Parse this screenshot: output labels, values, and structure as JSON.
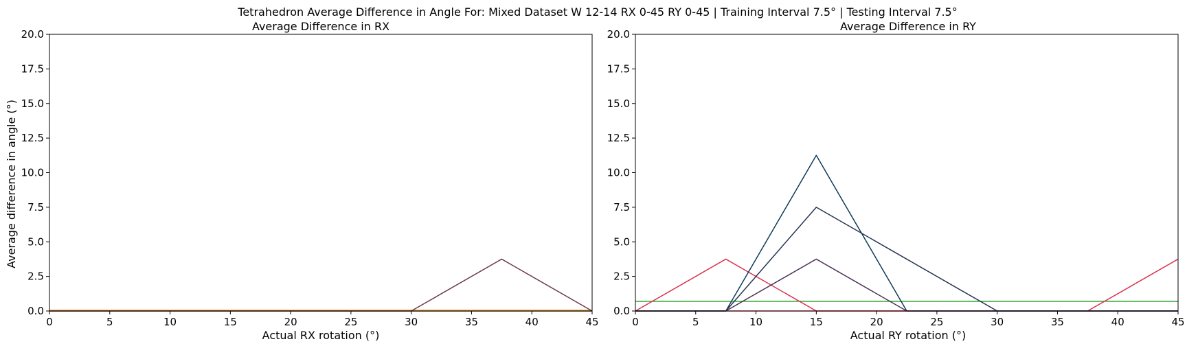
{
  "figure": {
    "title": "Tetrahedron Average Difference in Angle For: Mixed Dataset W 12-14 RX 0-45 RY 0-45 | Training Interval 7.5° | Testing Interval 7.5°"
  },
  "chart_data": [
    {
      "type": "line",
      "title": "Average Difference in RX",
      "xlabel": "Actual RX rotation (°)",
      "ylabel": "Average difference in angle (°)",
      "xlim": [
        0,
        45
      ],
      "ylim": [
        0,
        20
      ],
      "xticks": [
        0,
        5,
        10,
        15,
        20,
        25,
        30,
        35,
        40,
        45
      ],
      "yticks": [
        0.0,
        2.5,
        5.0,
        7.5,
        10.0,
        12.5,
        15.0,
        17.5,
        20.0
      ],
      "grid": false,
      "series": [
        {
          "color": "#1f77b4",
          "x": [
            0,
            7.5,
            15,
            22.5,
            30,
            37.5,
            45
          ],
          "y": [
            0,
            0,
            0,
            0,
            0,
            0,
            0
          ]
        },
        {
          "color": "#2ca02c",
          "x": [
            0,
            7.5,
            15,
            22.5,
            30,
            37.5,
            45
          ],
          "y": [
            0,
            0,
            0,
            0,
            0,
            0,
            0
          ]
        },
        {
          "color": "#ff7f0e",
          "x": [
            0,
            7.5,
            15,
            22.5,
            30,
            37.5,
            45
          ],
          "y": [
            0.05,
            0.05,
            0.05,
            0.05,
            0.05,
            0.05,
            0.05
          ]
        },
        {
          "color": "#6b3a4a",
          "x": [
            0,
            7.5,
            15,
            22.5,
            30,
            37.5,
            45
          ],
          "y": [
            0,
            0,
            0,
            0,
            0,
            3.75,
            0
          ]
        }
      ]
    },
    {
      "type": "line",
      "title": "Average Difference in RY",
      "xlabel": "Actual RY rotation (°)",
      "ylabel": "",
      "xlim": [
        0,
        45
      ],
      "ylim": [
        0,
        20
      ],
      "xticks": [
        0,
        5,
        10,
        15,
        20,
        25,
        30,
        35,
        40,
        45
      ],
      "yticks": [
        0.0,
        2.5,
        5.0,
        7.5,
        10.0,
        12.5,
        15.0,
        17.5,
        20.0
      ],
      "grid": false,
      "series": [
        {
          "color": "#2ca02c",
          "x": [
            0,
            7.5,
            15,
            22.5,
            30,
            37.5,
            45
          ],
          "y": [
            0.7,
            0.7,
            0.7,
            0.7,
            0.7,
            0.7,
            0.7
          ]
        },
        {
          "color": "#dc2f4a",
          "x": [
            0,
            7.5,
            15,
            22.5,
            30,
            37.5,
            45
          ],
          "y": [
            0,
            3.75,
            0,
            0,
            0,
            0,
            0
          ]
        },
        {
          "color": "#dc2f4a",
          "x": [
            0,
            7.5,
            15,
            22.5,
            30,
            37.5,
            45
          ],
          "y": [
            0,
            0,
            0,
            0,
            0,
            0,
            3.75
          ]
        },
        {
          "color": "#0d3b5a",
          "x": [
            0,
            7.5,
            15,
            22.5,
            30,
            37.5,
            45
          ],
          "y": [
            0,
            0,
            11.25,
            0,
            0,
            0,
            0
          ]
        },
        {
          "color": "#243352",
          "x": [
            0,
            7.5,
            15,
            22.5,
            30,
            37.5,
            45
          ],
          "y": [
            0,
            0,
            7.5,
            3.75,
            0,
            0,
            0
          ]
        },
        {
          "color": "#4a2f55",
          "x": [
            0,
            7.5,
            15,
            22.5,
            30,
            37.5,
            45
          ],
          "y": [
            0,
            0,
            3.75,
            0,
            0,
            0,
            0
          ]
        }
      ]
    }
  ]
}
